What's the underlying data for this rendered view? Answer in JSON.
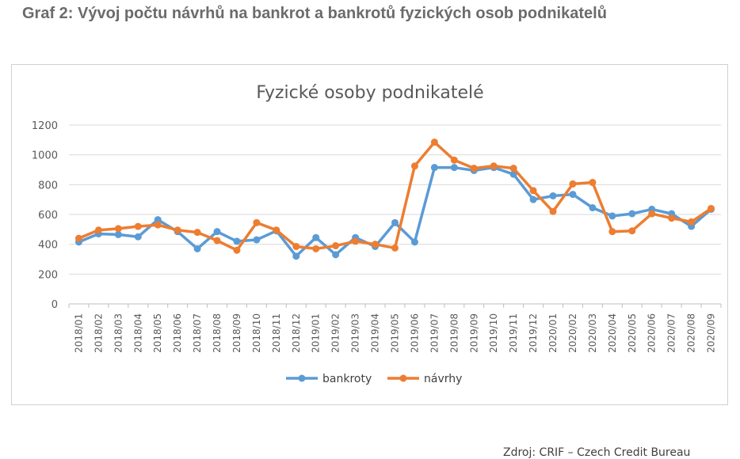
{
  "heading": "Graf 2: Vývoj počtu návrhů na bankrot a bankrotů fyzických osob podnikatelů",
  "source_note": "Zdroj: CRIF – Czech Credit Bureau",
  "chart_data": {
    "type": "line",
    "title": "Fyzické osoby podnikatelé",
    "xlabel": "",
    "ylabel": "",
    "ylim": [
      0,
      1200
    ],
    "yticks": [
      0,
      200,
      400,
      600,
      800,
      1000,
      1200
    ],
    "grid": true,
    "legend_position": "bottom",
    "categories": [
      "2018/01",
      "2018/02",
      "2018/03",
      "2018/04",
      "2018/05",
      "2018/06",
      "2018/07",
      "2018/08",
      "2018/09",
      "2018/10",
      "2018/11",
      "2018/12",
      "2019/01",
      "2019/02",
      "2019/03",
      "2019/04",
      "2019/05",
      "2019/06",
      "2019/07",
      "2019/08",
      "2019/09",
      "2019/10",
      "2019/11",
      "2019/12",
      "2020/01",
      "2020/02",
      "2020/03",
      "2020/04",
      "2020/05",
      "2020/06",
      "2020/07",
      "2020/08",
      "2020/09"
    ],
    "series": [
      {
        "name": "bankroty",
        "color": "#5b9bd5",
        "values": [
          415,
          470,
          465,
          450,
          565,
          485,
          370,
          485,
          420,
          430,
          490,
          320,
          445,
          330,
          445,
          385,
          545,
          415,
          915,
          915,
          895,
          915,
          870,
          700,
          725,
          735,
          645,
          590,
          605,
          635,
          605,
          520,
          635
        ]
      },
      {
        "name": "návrhy",
        "color": "#ed7d31",
        "values": [
          440,
          495,
          505,
          520,
          530,
          495,
          480,
          425,
          360,
          545,
          495,
          385,
          370,
          390,
          420,
          400,
          375,
          925,
          1085,
          965,
          910,
          925,
          910,
          760,
          620,
          805,
          815,
          485,
          490,
          605,
          575,
          550,
          640
        ]
      }
    ]
  }
}
